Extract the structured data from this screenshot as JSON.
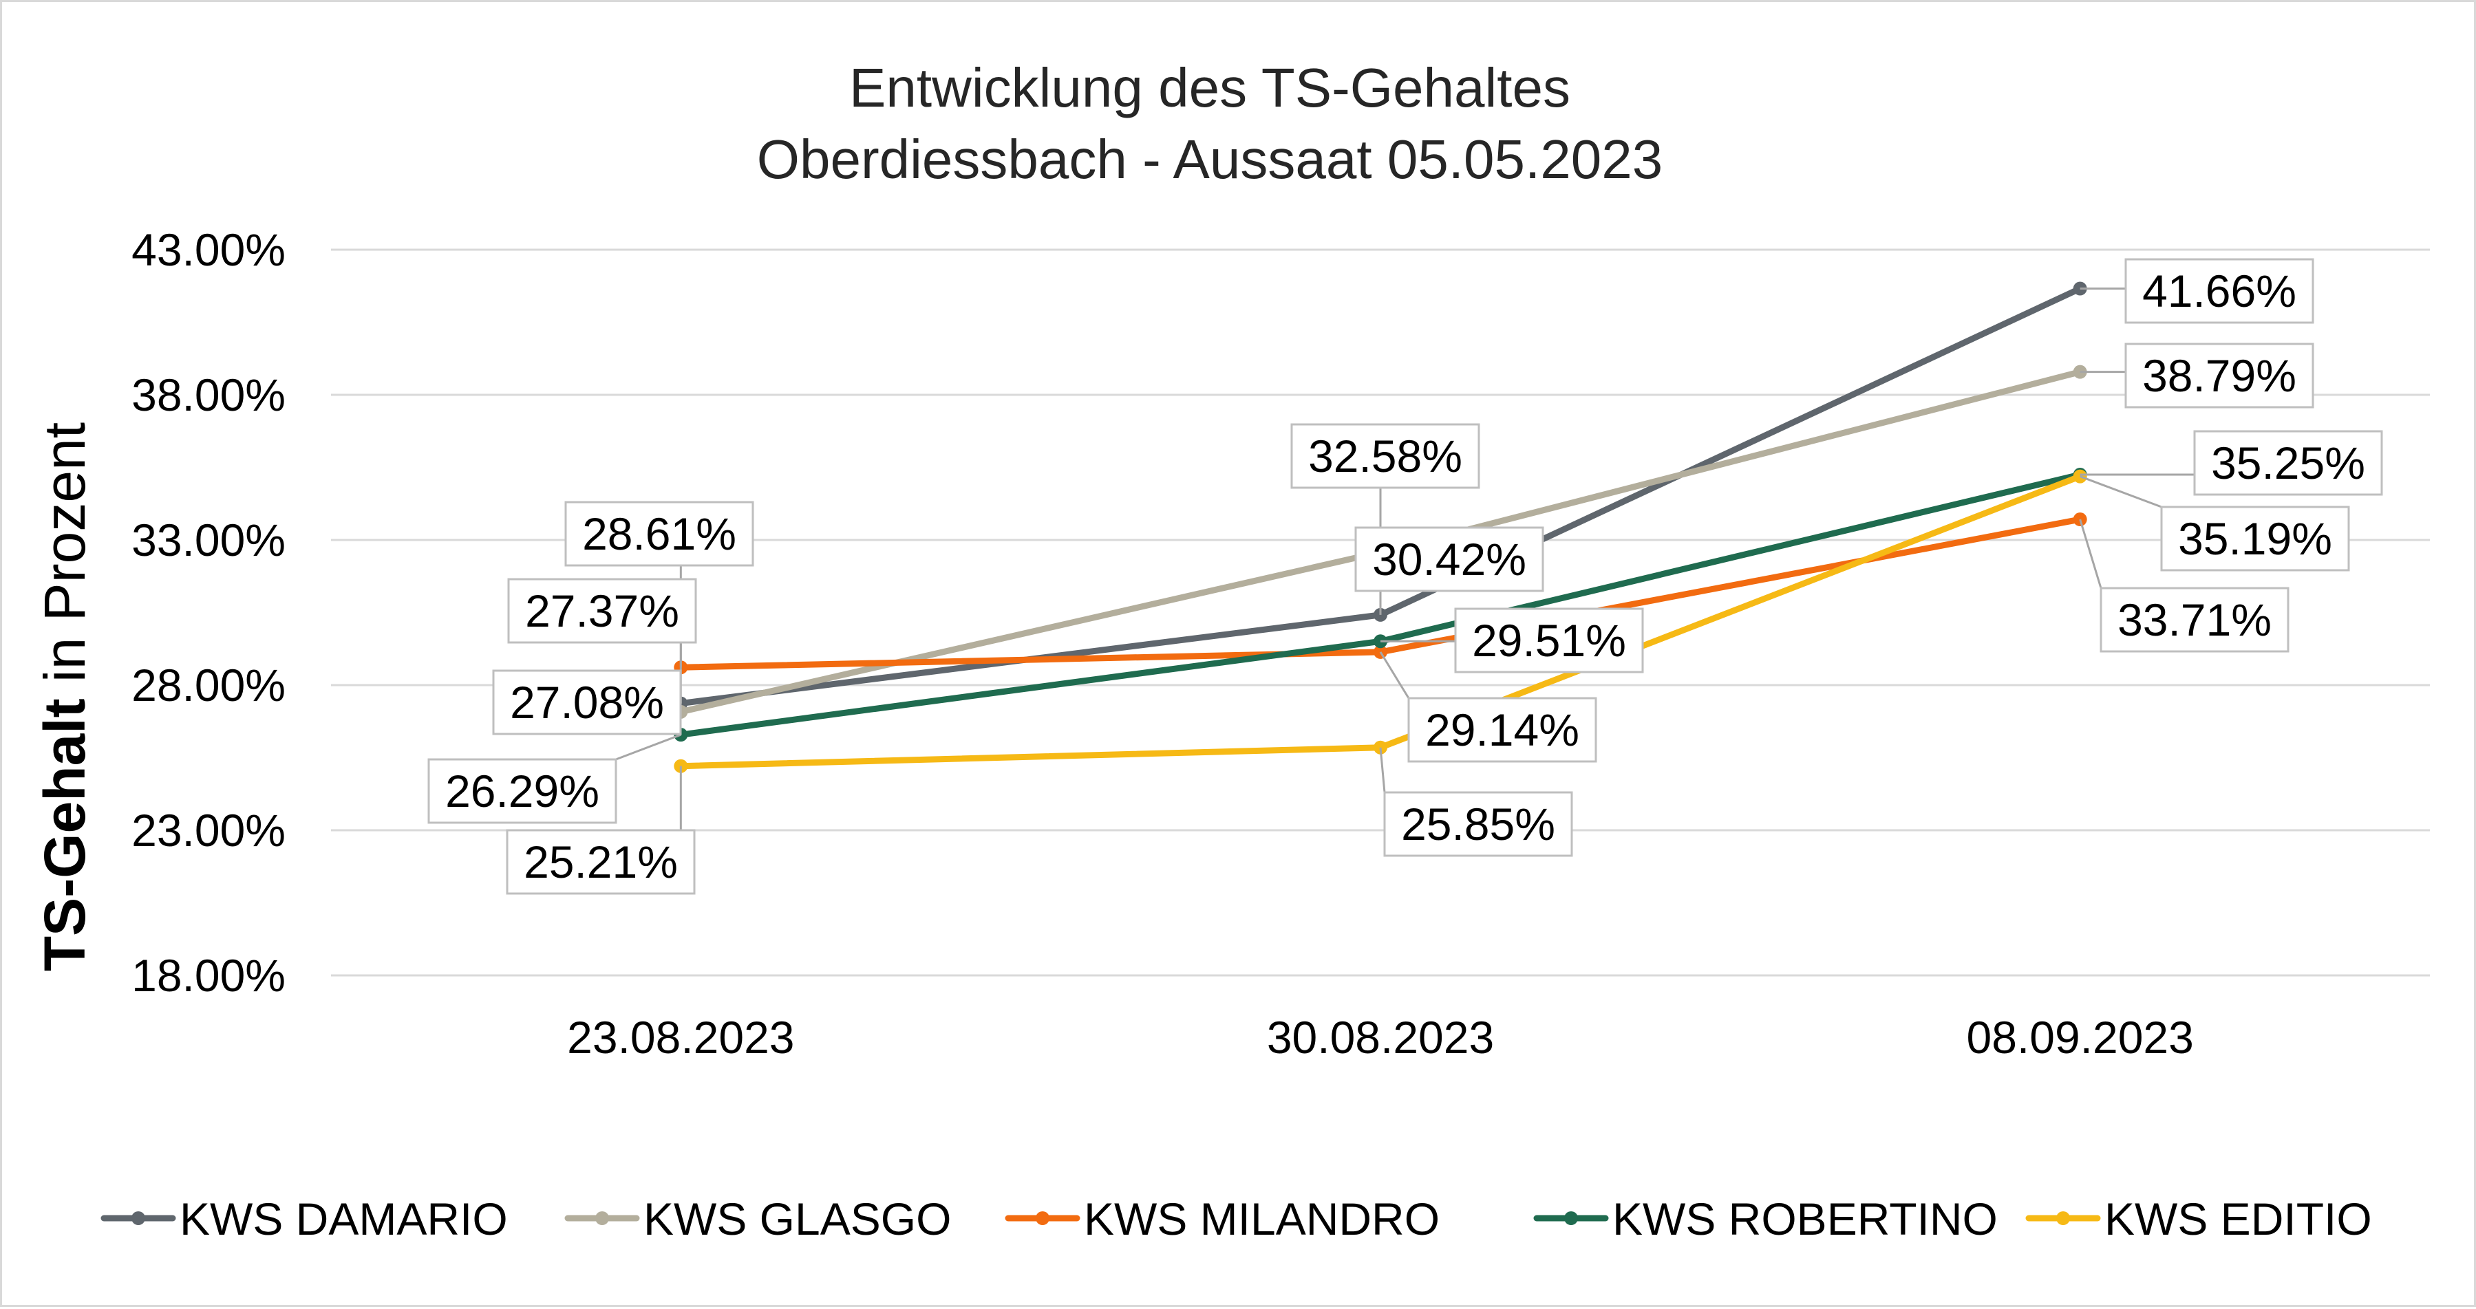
{
  "chart_data": {
    "type": "line",
    "title": [
      "Entwicklung des TS-Gehaltes",
      "Oberdiessbach - Aussaat 05.05.2023"
    ],
    "ylabel_bold": "TS-Gehalt",
    "ylabel_rest": " in Prozent",
    "xlabel": "",
    "categories": [
      "23.08.2023",
      "30.08.2023",
      "08.09.2023"
    ],
    "ylim": [
      18,
      43
    ],
    "yticks": [
      "18.00%",
      "23.00%",
      "28.00%",
      "33.00%",
      "38.00%",
      "43.00%"
    ],
    "grid": true,
    "legend_position": "bottom",
    "series": [
      {
        "name": "KWS DAMARIO",
        "color": "#5f666d",
        "values": [
          27.37,
          30.42,
          41.66
        ],
        "labels": [
          "27.37%",
          "30.42%",
          "41.66%"
        ]
      },
      {
        "name": "KWS GLASGO",
        "color": "#b3ae9c",
        "values": [
          27.08,
          32.58,
          38.79
        ],
        "labels": [
          "27.08%",
          "32.58%",
          "38.79%"
        ]
      },
      {
        "name": "KWS MILANDRO",
        "color": "#f26b10",
        "values": [
          28.61,
          29.14,
          33.71
        ],
        "labels": [
          "28.61%",
          "29.14%",
          "33.71%"
        ]
      },
      {
        "name": "KWS ROBERTINO",
        "color": "#1f6b4f",
        "values": [
          26.29,
          29.51,
          35.25
        ],
        "labels": [
          "26.29%",
          "29.51%",
          "35.25%"
        ]
      },
      {
        "name": "KWS EDITIO",
        "color": "#f6b915",
        "values": [
          25.21,
          25.85,
          35.19
        ],
        "labels": [
          "25.21%",
          "25.85%",
          "35.19%"
        ]
      }
    ]
  }
}
